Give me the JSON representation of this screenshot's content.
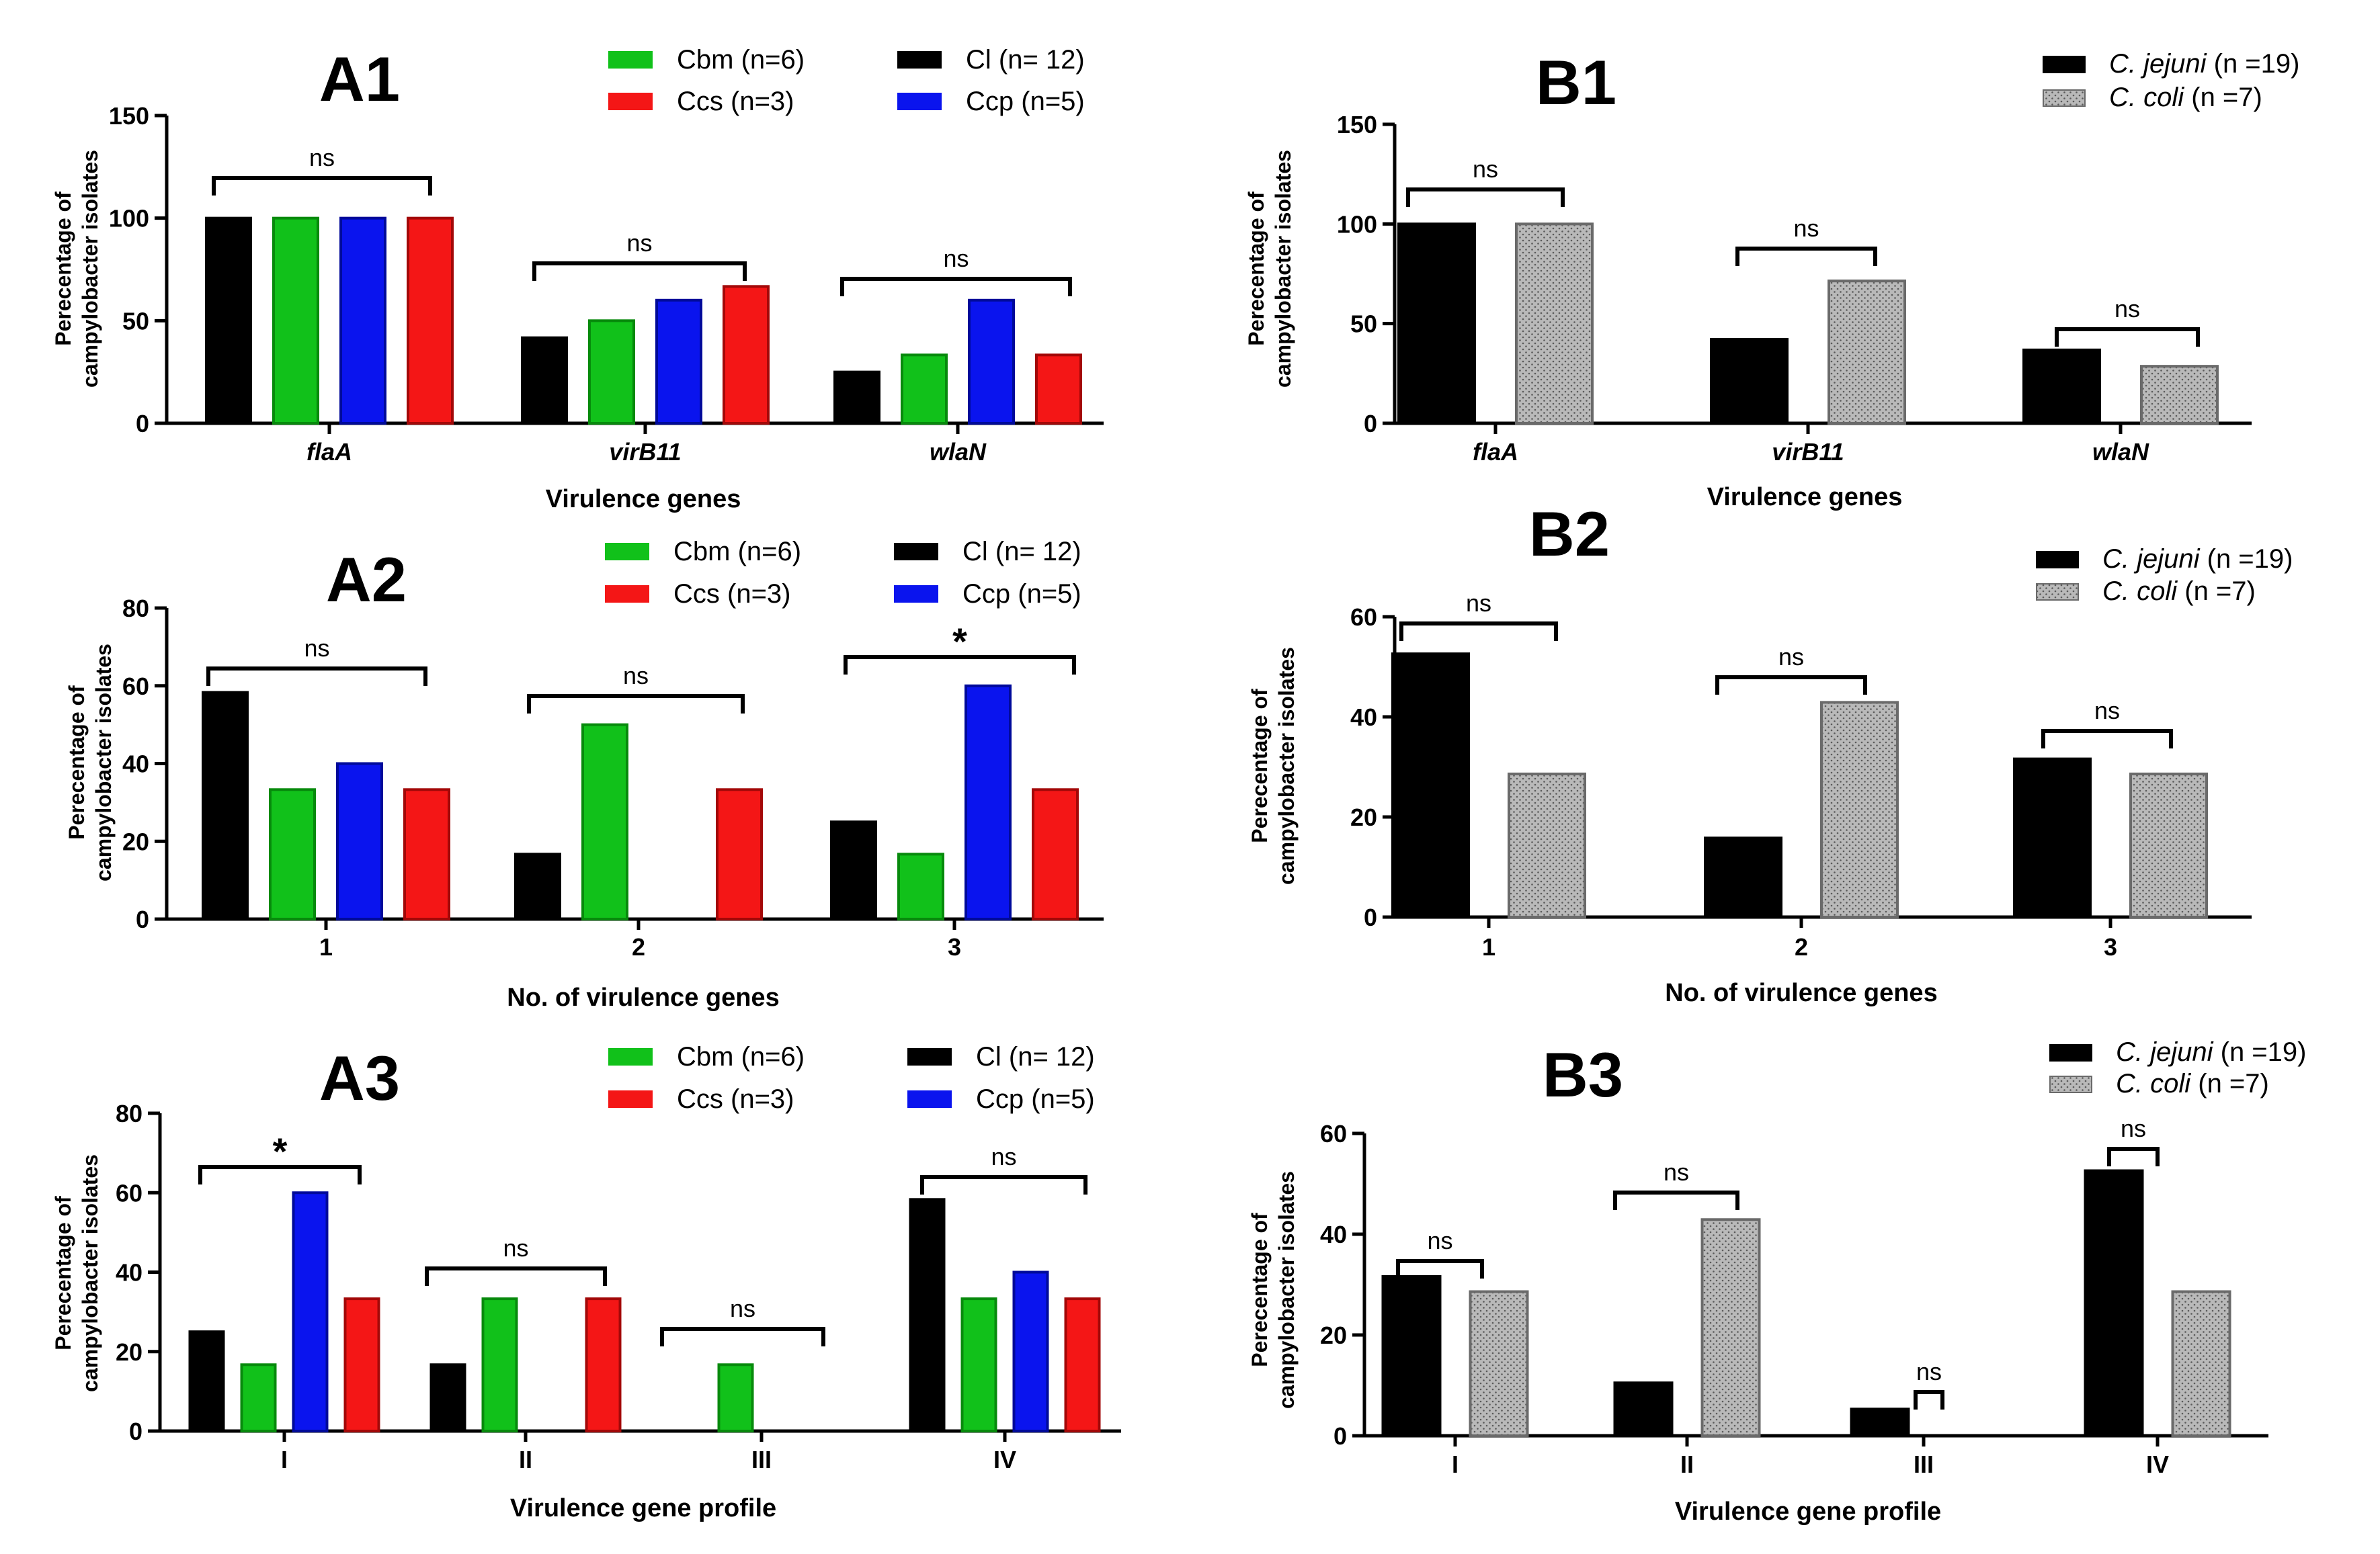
{
  "colors": {
    "Cl": "#000000",
    "Cbm": "#11c11a",
    "Cbm_stroke": "#078a0c",
    "Ccp": "#0a14ee",
    "Ccp_stroke": "#000a9a",
    "Ccs": "#f41616",
    "Ccs_stroke": "#a30808",
    "C_coli_fill": "#b9b9b9",
    "C_coli_stroke": "#6a6a6a"
  },
  "icons": {
    "dot_pattern": "dotted-fill-pattern"
  },
  "chart_data": [
    {
      "id": "A1",
      "type": "bar",
      "title": "A1",
      "xlabel": "Virulence genes",
      "ylabel_lines": [
        "Perecentage of",
        "campylobacter isolates"
      ],
      "ylim": [
        0,
        150
      ],
      "yticks": [
        "0",
        "50",
        "100",
        "150"
      ],
      "categories": [
        "flaA",
        "virB11",
        "wlaN"
      ],
      "categories_italic": true,
      "legend": [
        "Cbm (n=6)",
        "Cl (n= 12)",
        "Ccs (n=3)",
        "Ccp (n=5)"
      ],
      "series": [
        {
          "name": "Cl (n= 12)",
          "key": "Cl",
          "values": [
            100,
            41.7,
            25
          ]
        },
        {
          "name": "Cbm (n=6)",
          "key": "Cbm",
          "values": [
            100,
            50,
            33.3
          ]
        },
        {
          "name": "Ccp (n=5)",
          "key": "Ccp",
          "values": [
            100,
            60,
            60
          ]
        },
        {
          "name": "Ccs (n=3)",
          "key": "Ccs",
          "values": [
            100,
            66.7,
            33.3
          ]
        }
      ],
      "significance": [
        "ns",
        "ns",
        "ns"
      ]
    },
    {
      "id": "A2",
      "type": "bar",
      "title": "A2",
      "xlabel": "No. of virulence genes",
      "ylabel_lines": [
        "Perecentage of",
        "campylobacter isolates"
      ],
      "ylim": [
        0,
        80
      ],
      "yticks": [
        "0",
        "20",
        "40",
        "60",
        "80"
      ],
      "categories": [
        "1",
        "2",
        "3"
      ],
      "categories_italic": false,
      "legend": [
        "Cbm (n=6)",
        "Cl (n= 12)",
        "Ccs (n=3)",
        "Ccp (n=5)"
      ],
      "series": [
        {
          "name": "Cl (n= 12)",
          "key": "Cl",
          "values": [
            58.3,
            16.7,
            25
          ]
        },
        {
          "name": "Cbm (n=6)",
          "key": "Cbm",
          "values": [
            33.3,
            50,
            16.7
          ]
        },
        {
          "name": "Ccp (n=5)",
          "key": "Ccp",
          "values": [
            40,
            0,
            60
          ]
        },
        {
          "name": "Ccs (n=3)",
          "key": "Ccs",
          "values": [
            33.3,
            33.3,
            33.3
          ]
        }
      ],
      "significance": [
        "ns",
        "ns",
        "*"
      ]
    },
    {
      "id": "A3",
      "type": "bar",
      "title": "A3",
      "xlabel": "Virulence gene profile",
      "ylabel_lines": [
        "Perecentage of",
        "campylobacter isolates"
      ],
      "ylim": [
        0,
        80
      ],
      "yticks": [
        "0",
        "20",
        "40",
        "60",
        "80"
      ],
      "categories": [
        "I",
        "II",
        "III",
        "IV"
      ],
      "categories_italic": false,
      "legend": [
        "Cbm (n=6)",
        "Cl (n= 12)",
        "Ccs (n=3)",
        "Ccp (n=5)"
      ],
      "series": [
        {
          "name": "Cl (n= 12)",
          "key": "Cl",
          "values": [
            25,
            16.7,
            0,
            58.3
          ]
        },
        {
          "name": "Cbm (n=6)",
          "key": "Cbm",
          "values": [
            16.7,
            33.3,
            16.7,
            33.3
          ]
        },
        {
          "name": "Ccp (n=5)",
          "key": "Ccp",
          "values": [
            60,
            0,
            0,
            40
          ]
        },
        {
          "name": "Ccs (n=3)",
          "key": "Ccs",
          "values": [
            33.3,
            33.3,
            0,
            33.3
          ]
        }
      ],
      "significance": [
        "*",
        "ns",
        "ns",
        "ns"
      ]
    },
    {
      "id": "B1",
      "type": "bar",
      "title": "B1",
      "xlabel": "Virulence genes",
      "ylabel_lines": [
        "Perecentage of",
        "campylobacter isolates"
      ],
      "ylim": [
        0,
        150
      ],
      "yticks": [
        "0",
        "50",
        "100",
        "150"
      ],
      "categories": [
        "flaA",
        "virB11",
        "wlaN"
      ],
      "categories_italic": true,
      "legend_italic": [
        "C. jejuni",
        "C. coli"
      ],
      "legend_suffix": [
        "(n =19)",
        "(n =7)"
      ],
      "series": [
        {
          "name": "C. jejuni (n =19)",
          "key": "Cj",
          "values": [
            100,
            42.1,
            36.8
          ]
        },
        {
          "name": "C. coli (n =7)",
          "key": "Cc",
          "values": [
            100,
            71.4,
            28.6
          ]
        }
      ],
      "significance": [
        "ns",
        "ns",
        "ns"
      ]
    },
    {
      "id": "B2",
      "type": "bar",
      "title": "B2",
      "xlabel": "No. of virulence genes",
      "ylabel_lines": [
        "Perecentage of",
        "campylobacter isolates"
      ],
      "ylim": [
        0,
        60
      ],
      "yticks": [
        "0",
        "20",
        "40",
        "60"
      ],
      "categories": [
        "1",
        "2",
        "3"
      ],
      "categories_italic": false,
      "legend_italic": [
        "C. jejuni",
        "C. coli"
      ],
      "legend_suffix": [
        "(n =19)",
        "(n =7)"
      ],
      "series": [
        {
          "name": "C. jejuni (n =19)",
          "key": "Cj",
          "values": [
            52.6,
            15.8,
            31.6
          ]
        },
        {
          "name": "C. coli (n =7)",
          "key": "Cc",
          "values": [
            28.6,
            42.9,
            28.6
          ]
        }
      ],
      "significance": [
        "ns",
        "ns",
        "ns"
      ]
    },
    {
      "id": "B3",
      "type": "bar",
      "title": "B3",
      "xlabel": "Virulence gene profile",
      "ylabel_lines": [
        "Perecentage of",
        "campylobacter isolates"
      ],
      "ylim": [
        0,
        60
      ],
      "yticks": [
        "0",
        "20",
        "40",
        "60"
      ],
      "categories": [
        "I",
        "II",
        "III",
        "IV"
      ],
      "categories_italic": false,
      "legend_italic": [
        "C. jejuni",
        "C. coli"
      ],
      "legend_suffix": [
        "(n =19)",
        "(n =7)"
      ],
      "series": [
        {
          "name": "C. jejuni (n =19)",
          "key": "Cj",
          "values": [
            31.6,
            10.5,
            5.3,
            52.6
          ]
        },
        {
          "name": "C. coli (n =7)",
          "key": "Cc",
          "values": [
            28.6,
            42.9,
            0,
            28.6
          ]
        }
      ],
      "significance": [
        "ns",
        "ns",
        "ns",
        "ns"
      ]
    }
  ]
}
